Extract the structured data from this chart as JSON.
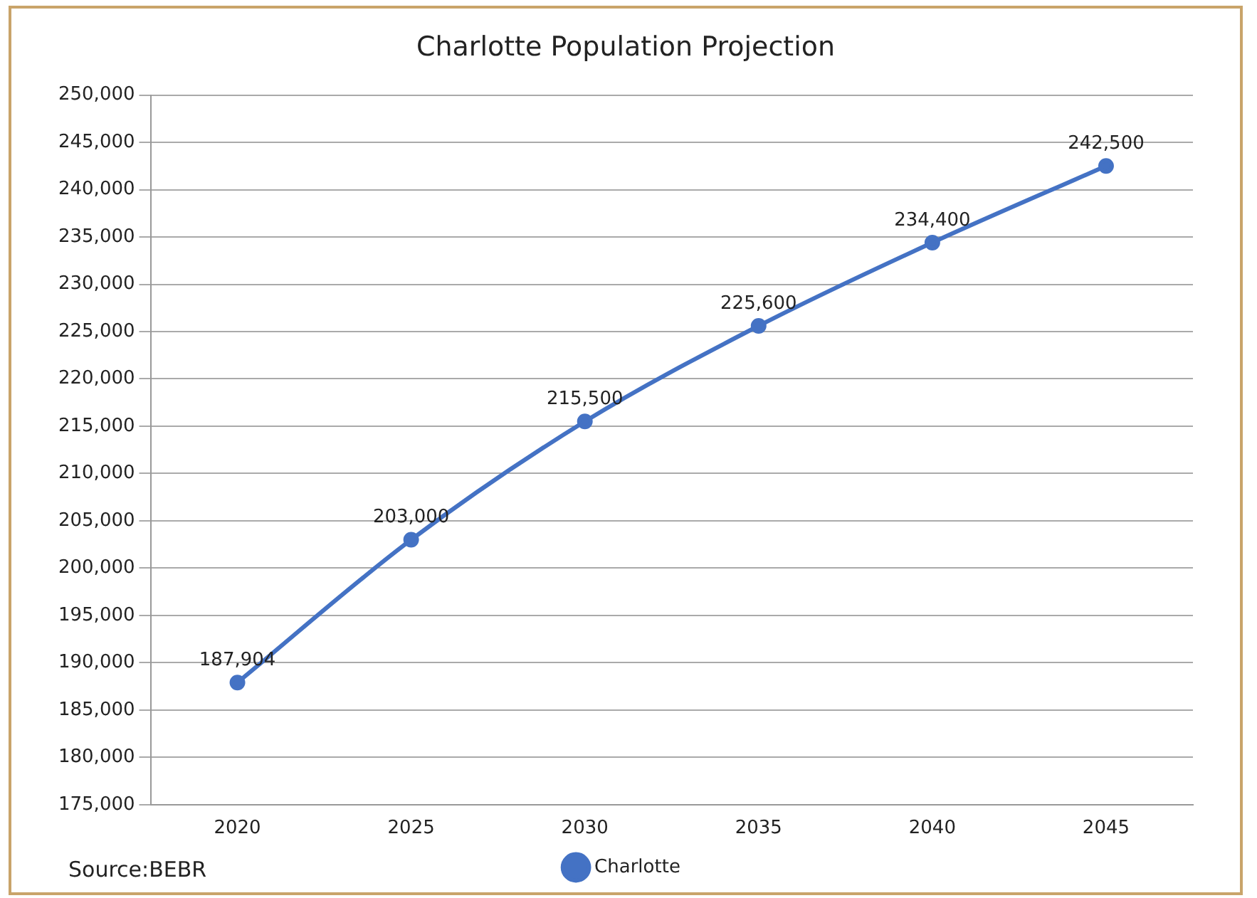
{
  "chart_data": {
    "type": "line",
    "title": "Charlotte Population Projection",
    "categories": [
      "2020",
      "2025",
      "2030",
      "2035",
      "2040",
      "2045"
    ],
    "series": [
      {
        "name": "Charlotte",
        "color": "#4472c4",
        "values": [
          187904,
          203000,
          215500,
          225600,
          234400,
          242500
        ]
      }
    ],
    "ylim": [
      175000,
      250000
    ],
    "yticks": [
      {
        "value": 175000,
        "label": "175,000"
      },
      {
        "value": 180000,
        "label": "180,000"
      },
      {
        "value": 185000,
        "label": "185,000"
      },
      {
        "value": 190000,
        "label": "190,000"
      },
      {
        "value": 195000,
        "label": "195,000"
      },
      {
        "value": 200000,
        "label": "200,000"
      },
      {
        "value": 205000,
        "label": "205,000"
      },
      {
        "value": 210000,
        "label": "210,000"
      },
      {
        "value": 215000,
        "label": "215,000"
      },
      {
        "value": 220000,
        "label": "220,000"
      },
      {
        "value": 225000,
        "label": "225,000"
      },
      {
        "value": 230000,
        "label": "230,000"
      },
      {
        "value": 235000,
        "label": "235,000"
      },
      {
        "value": 240000,
        "label": "240,000"
      },
      {
        "value": 245000,
        "label": "245,000"
      },
      {
        "value": 250000,
        "label": "250,000"
      }
    ],
    "value_labels": [
      "187,904",
      "203,000",
      "215,500",
      "225,600",
      "234,400",
      "242,500"
    ],
    "grid": "y",
    "legend": "bottom",
    "marker": "circle",
    "line_style": "solid",
    "annotations": [
      "Source:BEBR"
    ]
  }
}
